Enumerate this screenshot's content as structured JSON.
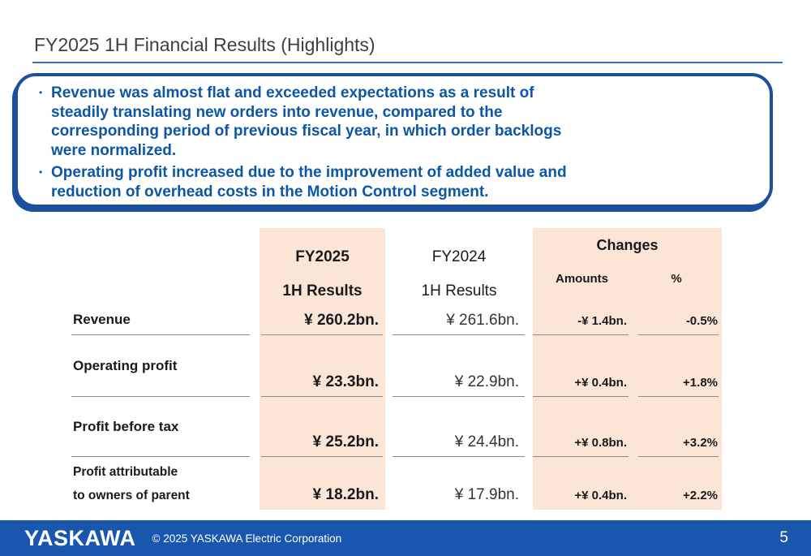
{
  "title": "FY2025 1H Financial Results (Highlights)",
  "highlights": {
    "bullets": [
      {
        "lines": [
          "Revenue was almost flat and exceeded expectations as a result of",
          "steadily translating new orders into revenue, compared to the",
          "corresponding period of previous fiscal year, in which order backlogs",
          "were normalized."
        ]
      },
      {
        "lines": [
          "Operating profit increased due to the improvement of added value and",
          "reduction of overhead costs in the Motion Control segment."
        ]
      }
    ]
  },
  "table": {
    "col_fy2025": {
      "line1": "FY2025",
      "line2": "1H Results"
    },
    "col_fy2024": {
      "line1": "FY2024",
      "line2": "1H Results"
    },
    "col_changes": {
      "title": "Changes",
      "sub_amounts": "Amounts",
      "sub_percent": "%"
    },
    "rows": [
      {
        "label": "Revenue",
        "fy2025": "¥ 260.2bn.",
        "fy2024": "¥ 261.6bn.",
        "amount": "-¥ 1.4bn.",
        "percent": "-0.5%"
      },
      {
        "label": "Operating profit",
        "fy2025": "¥ 23.3bn.",
        "fy2024": "¥ 22.9bn.",
        "amount": "+¥ 0.4bn.",
        "percent": "+1.8%"
      },
      {
        "label": "Profit before tax",
        "fy2025": "¥ 25.2bn.",
        "fy2024": "¥ 24.4bn.",
        "amount": "+¥ 0.8bn.",
        "percent": "+3.2%"
      },
      {
        "label": "Profit attributable",
        "label2": "to owners of parent",
        "fy2025": "¥ 18.2bn.",
        "fy2024": "¥ 17.9bn.",
        "amount": "+¥ 0.4bn.",
        "percent": "+2.2%"
      }
    ]
  },
  "footer": {
    "logo": "YASKAWA",
    "copyright": "© 2025 YASKAWA Electric Corporation",
    "page_number": "5"
  },
  "colors": {
    "accent_text_blue": "#0d56a6",
    "box_border_blue": "#1c4f9c",
    "footer_bar_blue": "#1857ad",
    "highlight_peach": "#fbe5d6",
    "title_underline_blue": "#2e75b6"
  }
}
